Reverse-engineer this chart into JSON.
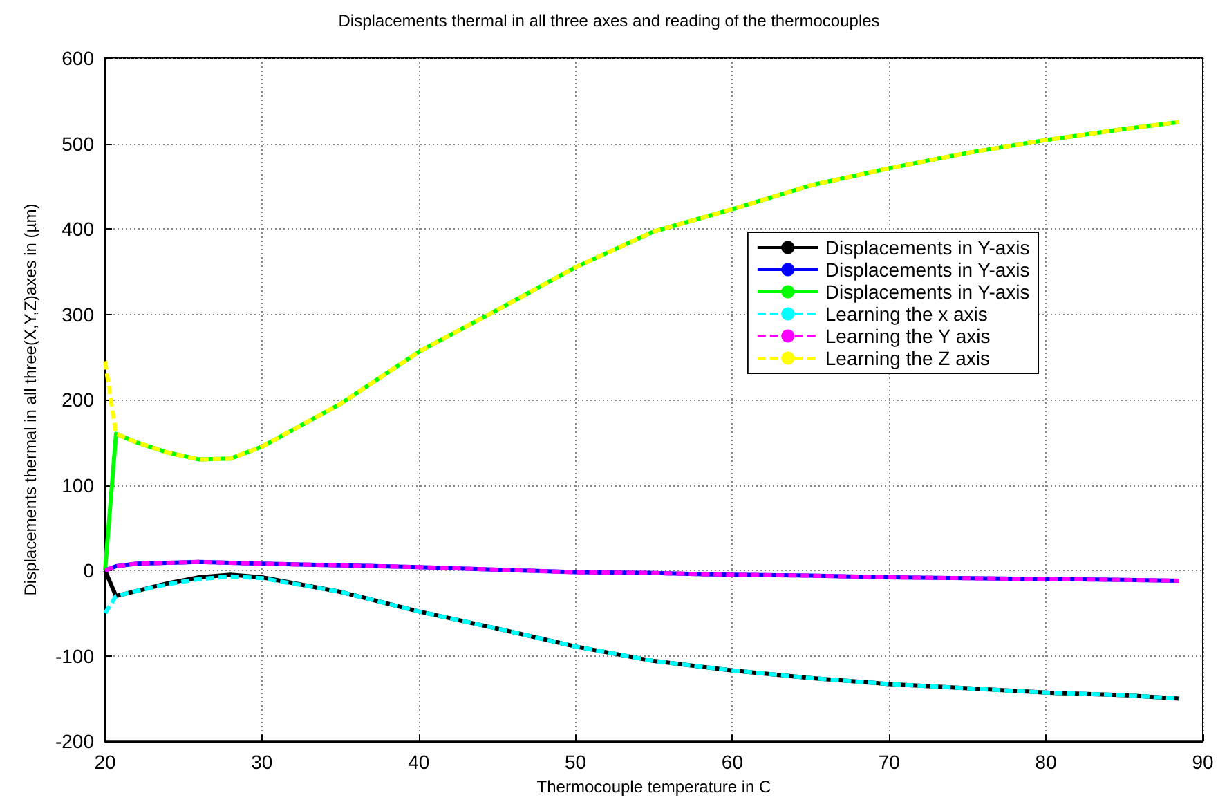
{
  "chart_data": {
    "type": "line",
    "title": "Displacements thermal in all three axes and reading of the thermocouples",
    "xlabel": "Thermocouple temperature in C",
    "ylabel": "Displacements thermal in all three(X,Y,Z)axes in (µm)",
    "x": [
      20,
      20.7,
      22,
      24,
      26,
      28,
      30,
      35,
      40,
      45,
      50,
      55,
      60,
      65,
      70,
      75,
      80,
      85,
      88.5
    ],
    "series": [
      {
        "name": "Displacements in Y-axis",
        "color": "#000000",
        "line_style": "solid",
        "values": [
          0,
          -30,
          -24,
          -15,
          -8,
          -5,
          -8,
          -25,
          -48,
          -68,
          -89,
          -106,
          -117,
          -126,
          -133,
          -138,
          -143,
          -146,
          -150
        ]
      },
      {
        "name": "Displacements in Y-axis",
        "color": "#0000ff",
        "line_style": "solid",
        "values": [
          0,
          5,
          8,
          9,
          10,
          9,
          8,
          6,
          4,
          1,
          -2,
          -3,
          -5,
          -6,
          -8,
          -9,
          -10,
          -11,
          -12
        ]
      },
      {
        "name": "Displacements in Y-axis",
        "color": "#00ff00",
        "line_style": "solid",
        "values": [
          0,
          160,
          150,
          138,
          130,
          131,
          145,
          195,
          256,
          305,
          355,
          397,
          423,
          451,
          471,
          489,
          504,
          517,
          525
        ]
      },
      {
        "name": "Learning the x axis",
        "color": "#00ffff",
        "line_style": "dashed",
        "values": [
          -50,
          -30,
          -24,
          -16,
          -10,
          -7,
          -9,
          -25,
          -48,
          -68,
          -89,
          -106,
          -117,
          -126,
          -133,
          -138,
          -143,
          -146,
          -150
        ]
      },
      {
        "name": "Learning the Y axis",
        "color": "#ff00ff",
        "line_style": "dashed",
        "values": [
          0,
          5,
          8,
          9,
          10,
          9,
          8,
          6,
          4,
          1,
          -2,
          -3,
          -5,
          -6,
          -8,
          -9,
          -10,
          -11,
          -12
        ]
      },
      {
        "name": "Learning the Z axis",
        "color": "#ffff00",
        "line_style": "dashed",
        "values": [
          245,
          160,
          150,
          138,
          130,
          131,
          145,
          195,
          256,
          305,
          355,
          397,
          423,
          451,
          471,
          489,
          504,
          517,
          525
        ]
      }
    ],
    "xlim": [
      20,
      90
    ],
    "xticks": [
      20,
      30,
      40,
      50,
      60,
      70,
      80,
      90
    ],
    "ylim": [
      -200,
      600
    ],
    "yticks": [
      -200,
      -100,
      0,
      100,
      200,
      300,
      400,
      500,
      600
    ],
    "grid": true,
    "legend": "right",
    "marker": "none"
  }
}
